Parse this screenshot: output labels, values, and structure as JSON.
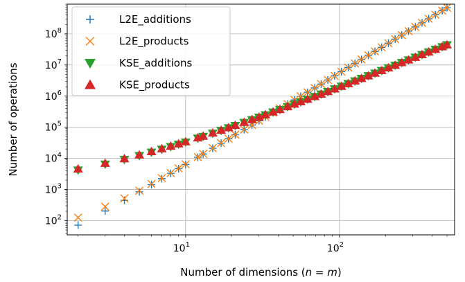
{
  "chart_data": {
    "type": "scatter",
    "xscale": "log",
    "yscale": "log",
    "xlim": [
      1.7,
      560
    ],
    "ylim": [
      35,
      900000000
    ],
    "xlabel_prefix": "Number of dimensions (",
    "xlabel_var_n": "n",
    "xlabel_eq": " = ",
    "xlabel_var_m": "m",
    "xlabel_suffix": ")",
    "ylabel": "Number of operations",
    "x_ticks": [
      {
        "value": 10,
        "base": "10",
        "exp": "1"
      },
      {
        "value": 100,
        "base": "10",
        "exp": "2"
      }
    ],
    "y_ticks": [
      {
        "value": 100,
        "base": "10",
        "exp": "2"
      },
      {
        "value": 1000,
        "base": "10",
        "exp": "3"
      },
      {
        "value": 10000,
        "base": "10",
        "exp": "4"
      },
      {
        "value": 100000,
        "base": "10",
        "exp": "5"
      },
      {
        "value": 1000000,
        "base": "10",
        "exp": "6"
      },
      {
        "value": 10000000,
        "base": "10",
        "exp": "7"
      },
      {
        "value": 100000000,
        "base": "10",
        "exp": "8"
      }
    ],
    "grid": true,
    "legend_position": "top-left",
    "x": [
      2,
      3,
      4,
      5,
      6,
      7,
      8,
      9,
      10,
      12,
      13,
      15,
      17,
      19,
      21,
      24,
      27,
      30,
      33,
      37,
      41,
      46,
      51,
      56,
      62,
      69,
      76,
      84,
      93,
      103,
      114,
      126,
      139,
      154,
      170,
      188,
      208,
      230,
      254,
      281,
      311,
      344,
      380,
      420,
      465,
      500
    ],
    "series": [
      {
        "name": "L2E_additions",
        "color": "#1f77b4",
        "marker": "plus",
        "values": [
          72,
          205,
          448,
          845,
          1430,
          2240,
          3312,
          4680,
          6380,
          10900,
          13800,
          21200,
          30800,
          42800,
          57700,
          84000,
          118000,
          162000,
          215000,
          296000,
          402000,
          556000,
          756000,
          984000,
          1330000,
          1830000,
          2450000,
          3310000,
          4490000,
          6100000,
          8290000,
          11200000,
          15000000,
          20400000,
          27400000,
          37000000,
          50100000,
          67700000,
          91200000,
          123000000,
          167000000,
          226000000,
          305000000,
          412000000,
          558000000,
          694000000
        ]
      },
      {
        "name": "L2E_products",
        "color": "#ff7f0e",
        "marker": "x",
        "values": [
          126,
          282,
          520,
          920,
          1510,
          2330,
          3420,
          4800,
          6500,
          11100,
          14000,
          21400,
          31100,
          43100,
          58100,
          84500,
          118500,
          162500,
          216000,
          297000,
          403000,
          557000,
          757000,
          985000,
          1330000,
          1830000,
          2450000,
          3310000,
          4490000,
          6100000,
          8290000,
          11200000,
          15000000,
          20400000,
          27400000,
          37000000,
          50100000,
          67700000,
          91200000,
          123000000,
          167000000,
          226000000,
          305000000,
          412000000,
          558000000,
          694000000
        ]
      },
      {
        "name": "KSE_additions",
        "color": "#2ca02c",
        "marker": "triangle-down",
        "values": [
          4200,
          6500,
          9200,
          12300,
          15800,
          19600,
          23800,
          28400,
          33300,
          44400,
          50500,
          63900,
          78800,
          95300,
          113000,
          142000,
          174000,
          210000,
          250000,
          306000,
          369000,
          456000,
          551000,
          655000,
          792000,
          967000,
          1160000,
          1400000,
          1700000,
          2070000,
          2520000,
          3060000,
          3690000,
          4500000,
          5460000,
          6620000,
          8060000,
          9800000,
          11900000,
          14500000,
          17700000,
          21500000,
          26100000,
          31700000,
          38600000,
          44400000
        ]
      },
      {
        "name": "KSE_products",
        "color": "#d62728",
        "marker": "triangle-up",
        "values": [
          4600,
          7000,
          9800,
          13000,
          16600,
          20500,
          24800,
          29500,
          34500,
          45800,
          52000,
          65600,
          80700,
          97400,
          115500,
          145000,
          177000,
          213000,
          254000,
          311000,
          374000,
          462000,
          558000,
          662000,
          800000,
          976000,
          1170000,
          1410000,
          1710000,
          2080000,
          2540000,
          3080000,
          3710000,
          4520000,
          5490000,
          6650000,
          8100000,
          9840000,
          12000000,
          14600000,
          17800000,
          21600000,
          26200000,
          31900000,
          38800000,
          44700000
        ]
      }
    ]
  }
}
